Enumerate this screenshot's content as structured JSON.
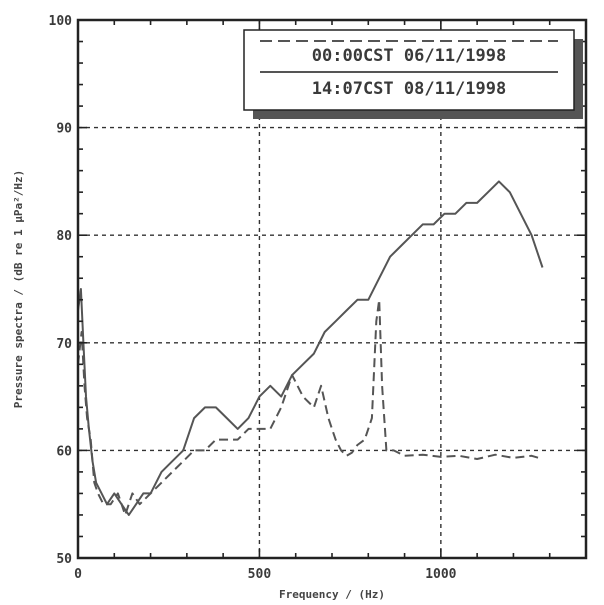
{
  "chart_data": {
    "type": "line",
    "xlabel": "Frequency / (Hz)",
    "ylabel": "Pressure spectra / (dB re 1 μPa²/Hz)",
    "xlim": [
      0,
      1400
    ],
    "ylim": [
      50,
      100
    ],
    "xticks": [
      0,
      500,
      1000
    ],
    "xtick_labels": [
      "0",
      "500",
      "1000"
    ],
    "yticks": [
      50,
      60,
      70,
      80,
      90,
      100
    ],
    "ytick_labels": [
      "50",
      "60",
      "70",
      "80",
      "90",
      "100"
    ],
    "grid": true,
    "legend_position": "top-right",
    "colors": {
      "line": "#555555",
      "grid": "#333333",
      "frame": "#222222",
      "shadow": "#555555"
    },
    "series": [
      {
        "name": "00:00CST 06/11/1998",
        "style": "dashed",
        "x": [
          0,
          10,
          18,
          25,
          35,
          45,
          55,
          70,
          90,
          110,
          130,
          150,
          170,
          200,
          230,
          260,
          290,
          320,
          350,
          380,
          410,
          440,
          470,
          500,
          530,
          560,
          590,
          620,
          650,
          670,
          690,
          710,
          725,
          740,
          755,
          770,
          790,
          810,
          822,
          830,
          838,
          850,
          870,
          900,
          950,
          1000,
          1050,
          1100,
          1150,
          1200,
          1250,
          1280
        ],
        "y": [
          68,
          71,
          66,
          63,
          61,
          57,
          56,
          55,
          55,
          56,
          54,
          56,
          55,
          56,
          57,
          58,
          59,
          60,
          60,
          61,
          61,
          61,
          62,
          62,
          62,
          64,
          67,
          65,
          64,
          66,
          63,
          61,
          60,
          59.5,
          59.8,
          60.5,
          61,
          63,
          72,
          74,
          66,
          60,
          60,
          59.5,
          59.6,
          59.4,
          59.5,
          59.2,
          59.6,
          59.3,
          59.5,
          59.2
        ]
      },
      {
        "name": "14:07CST 08/11/1998",
        "style": "solid",
        "x": [
          0,
          8,
          15,
          22,
          30,
          40,
          50,
          65,
          80,
          100,
          120,
          140,
          160,
          180,
          200,
          230,
          260,
          290,
          320,
          350,
          380,
          410,
          440,
          470,
          500,
          530,
          560,
          590,
          620,
          650,
          680,
          710,
          740,
          770,
          800,
          830,
          860,
          890,
          920,
          950,
          980,
          1010,
          1040,
          1070,
          1100,
          1130,
          1160,
          1190,
          1220,
          1250,
          1280
        ],
        "y": [
          73,
          75,
          70,
          65,
          62,
          59,
          57,
          56,
          55,
          56,
          55,
          54,
          55,
          56,
          56,
          58,
          59,
          60,
          63,
          64,
          64,
          63,
          62,
          63,
          65,
          66,
          65,
          67,
          68,
          69,
          71,
          72,
          73,
          74,
          74,
          76,
          78,
          79,
          80,
          81,
          81,
          82,
          82,
          83,
          83,
          84,
          85,
          84,
          82,
          80,
          77
        ]
      }
    ]
  }
}
